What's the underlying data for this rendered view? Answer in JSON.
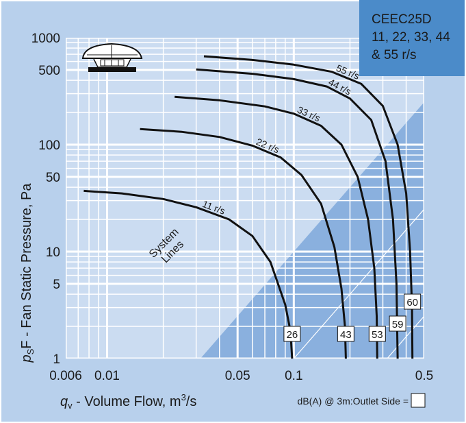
{
  "chart_data": {
    "type": "line",
    "x_scale": "log",
    "y_scale": "log",
    "xlim": [
      0.006,
      0.5
    ],
    "ylim": [
      1,
      1000
    ],
    "x_ticks": [
      "0.006",
      "0.01",
      "0.05",
      "0.1",
      "0.5"
    ],
    "x_tick_values": [
      0.006,
      0.01,
      0.05,
      0.1,
      0.5
    ],
    "y_ticks": [
      "1000",
      "500",
      "100",
      "50",
      "10",
      "5",
      "1"
    ],
    "y_tick_values": [
      1000,
      500,
      100,
      50,
      10,
      5,
      1
    ],
    "x_minor_grid": [
      0.007,
      0.008,
      0.009,
      0.02,
      0.03,
      0.04,
      0.06,
      0.07,
      0.08,
      0.09,
      0.2,
      0.3,
      0.4
    ],
    "y_minor_grid": [
      2,
      3,
      4,
      6,
      7,
      8,
      9,
      20,
      30,
      40,
      60,
      70,
      80,
      90,
      200,
      300,
      400,
      600,
      700,
      800,
      900
    ],
    "grid": true,
    "xlabel": {
      "symbol": "q",
      "subscript": "v",
      "text": " - Volume Flow, m",
      "superscript": "3",
      "suffix": "/s"
    },
    "ylabel": {
      "symbol": "p",
      "subscript": "S",
      "text": "F - Fan Static Pressure, Pa"
    },
    "title_lines": [
      "CEEC25D",
      "11, 22, 33, 44",
      "& 55 r/s"
    ],
    "system_lines_label": [
      "System",
      "Lines"
    ],
    "system_lines_k": [
      0.1,
      1,
      10,
      100
    ],
    "operating_region_k": 1000,
    "series": [
      {
        "name": "11 r/s",
        "db": "26",
        "points": [
          [
            0.0075,
            37
          ],
          [
            0.012,
            35
          ],
          [
            0.02,
            31
          ],
          [
            0.03,
            26
          ],
          [
            0.045,
            20
          ],
          [
            0.06,
            14
          ],
          [
            0.075,
            8
          ],
          [
            0.09,
            3.2
          ],
          [
            0.096,
            1.8
          ],
          [
            0.098,
            1
          ]
        ]
      },
      {
        "name": "22 r/s",
        "db": "43",
        "points": [
          [
            0.015,
            140
          ],
          [
            0.025,
            132
          ],
          [
            0.04,
            118
          ],
          [
            0.06,
            98
          ],
          [
            0.085,
            76
          ],
          [
            0.11,
            52
          ],
          [
            0.14,
            28
          ],
          [
            0.165,
            11
          ],
          [
            0.18,
            4.5
          ],
          [
            0.188,
            2
          ],
          [
            0.19,
            1
          ]
        ]
      },
      {
        "name": "33 r/s",
        "db": "53",
        "points": [
          [
            0.023,
            280
          ],
          [
            0.04,
            260
          ],
          [
            0.07,
            228
          ],
          [
            0.1,
            195
          ],
          [
            0.14,
            150
          ],
          [
            0.18,
            100
          ],
          [
            0.22,
            50
          ],
          [
            0.25,
            20
          ],
          [
            0.27,
            7
          ],
          [
            0.278,
            2.5
          ],
          [
            0.28,
            1
          ]
        ]
      },
      {
        "name": "44 r/s",
        "db": "59",
        "points": [
          [
            0.03,
            505
          ],
          [
            0.06,
            460
          ],
          [
            0.1,
            410
          ],
          [
            0.15,
            350
          ],
          [
            0.2,
            270
          ],
          [
            0.26,
            170
          ],
          [
            0.31,
            70
          ],
          [
            0.34,
            20
          ],
          [
            0.355,
            5
          ],
          [
            0.36,
            1
          ]
        ]
      },
      {
        "name": "55 r/s",
        "db": "60",
        "points": [
          [
            0.033,
            670
          ],
          [
            0.06,
            620
          ],
          [
            0.1,
            560
          ],
          [
            0.16,
            480
          ],
          [
            0.23,
            370
          ],
          [
            0.3,
            230
          ],
          [
            0.36,
            100
          ],
          [
            0.4,
            35
          ],
          [
            0.42,
            10
          ],
          [
            0.43,
            3
          ],
          [
            0.432,
            1
          ]
        ]
      }
    ],
    "db_legend": "dB(A) @ 3m:Outlet  Side ="
  },
  "colors": {
    "frame": "#b8d0ec",
    "plot_bg": "#cbdcf1",
    "region": "#8ab0de",
    "grid_major": "#ffffff",
    "curve": "#111111",
    "title_box": "#4b8bc9"
  },
  "icon": "roof-fan-icon"
}
